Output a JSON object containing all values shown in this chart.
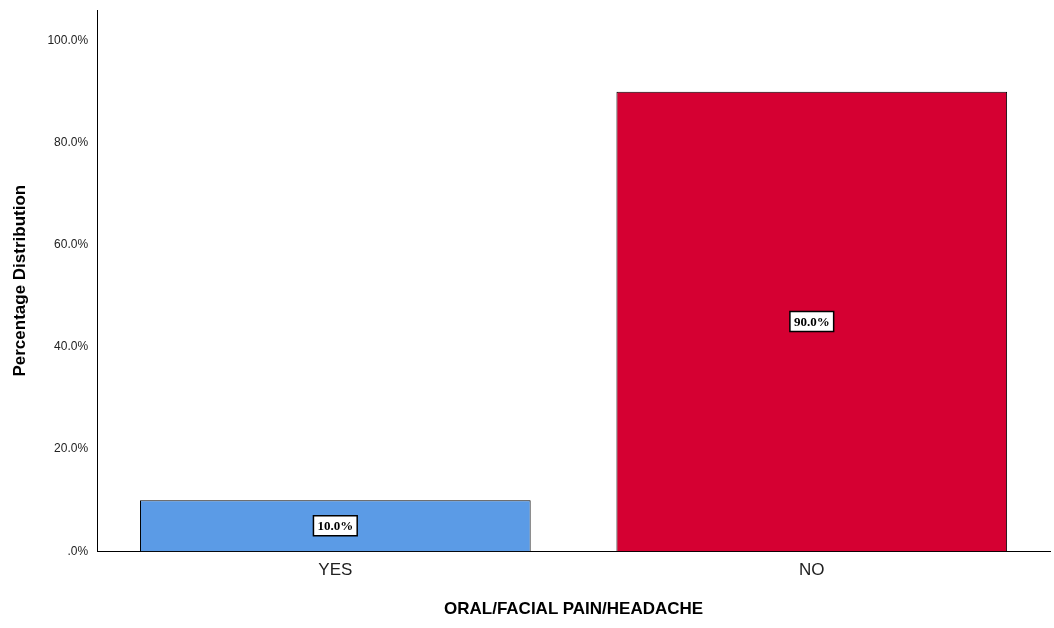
{
  "chart_data": {
    "type": "bar",
    "xlabel": "ORAL/FACIAL PAIN/HEADACHE",
    "ylabel": "Percentage Distribution",
    "categories": [
      "YES",
      "NO"
    ],
    "values": [
      10,
      90
    ],
    "colors": [
      "#5b9be6",
      "#d50032"
    ],
    "value_labels": [
      "10.0%",
      "90.0%"
    ],
    "ylim": [
      0,
      106
    ],
    "yticks": [
      {
        "value": 0,
        "label": ".0%"
      },
      {
        "value": 20,
        "label": "20.0%"
      },
      {
        "value": 40,
        "label": "40.0%"
      },
      {
        "value": 60,
        "label": "60.0%"
      },
      {
        "value": 80,
        "label": "80.0%"
      },
      {
        "value": 100,
        "label": "100.0%"
      }
    ],
    "grid": false
  }
}
